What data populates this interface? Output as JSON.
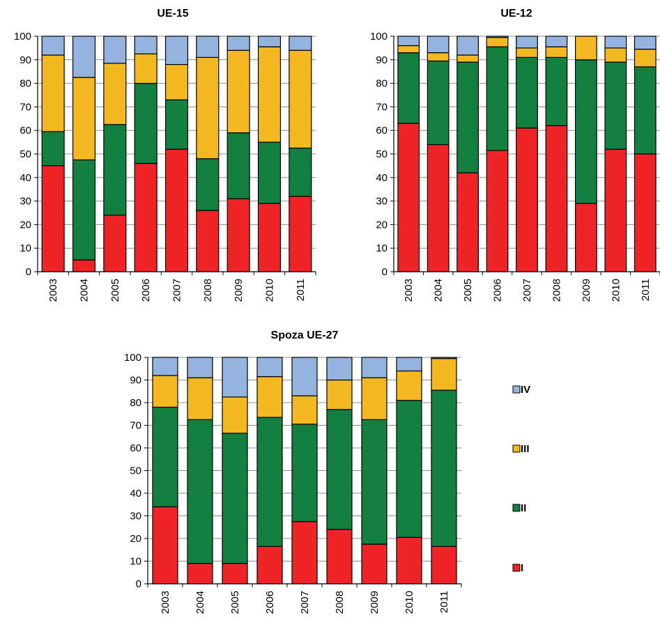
{
  "chart_data": [
    {
      "type": "bar",
      "stacked": true,
      "title": "UE-15",
      "categories": [
        "2003",
        "2004",
        "2005",
        "2006",
        "2007",
        "2008",
        "2009",
        "2010",
        "2011"
      ],
      "ylim": [
        0,
        100
      ],
      "yticks": [
        0,
        10,
        20,
        30,
        40,
        50,
        60,
        70,
        80,
        90,
        100
      ],
      "grid": true,
      "series": [
        {
          "name": "I",
          "values": [
            45,
            5,
            24,
            46,
            52,
            26,
            31,
            29,
            32
          ]
        },
        {
          "name": "II",
          "values": [
            14.5,
            42.5,
            38.5,
            34,
            21,
            22,
            28,
            26,
            20.5
          ]
        },
        {
          "name": "III",
          "values": [
            32.5,
            35,
            26,
            12.5,
            15,
            43,
            35,
            40.5,
            41.5
          ]
        },
        {
          "name": "IV",
          "values": [
            8,
            17.5,
            11.5,
            7.5,
            12,
            9,
            6,
            4.5,
            6
          ]
        }
      ]
    },
    {
      "type": "bar",
      "stacked": true,
      "title": "UE-12",
      "categories": [
        "2003",
        "2004",
        "2005",
        "2006",
        "2007",
        "2008",
        "2009",
        "2010",
        "2011"
      ],
      "ylim": [
        0,
        100
      ],
      "yticks": [
        0,
        10,
        20,
        30,
        40,
        50,
        60,
        70,
        80,
        90,
        100
      ],
      "grid": true,
      "series": [
        {
          "name": "I",
          "values": [
            63,
            54,
            42,
            51.5,
            61,
            62,
            29,
            52,
            50
          ]
        },
        {
          "name": "II",
          "values": [
            30,
            35.5,
            47,
            44,
            30,
            29,
            61,
            37,
            37
          ]
        },
        {
          "name": "III",
          "values": [
            3,
            3.5,
            3,
            4,
            4,
            4.5,
            10,
            6,
            7.5
          ]
        },
        {
          "name": "IV",
          "values": [
            4,
            7,
            8,
            0.5,
            5,
            4.5,
            0,
            5,
            5.5
          ]
        }
      ]
    },
    {
      "type": "bar",
      "stacked": true,
      "title": "Spoza UE-27",
      "categories": [
        "2003",
        "2004",
        "2005",
        "2006",
        "2007",
        "2008",
        "2009",
        "2010",
        "2011"
      ],
      "ylim": [
        0,
        100
      ],
      "yticks": [
        0,
        10,
        20,
        30,
        40,
        50,
        60,
        70,
        80,
        90,
        100
      ],
      "grid": true,
      "legend_position": "right",
      "series": [
        {
          "name": "I",
          "values": [
            34,
            9,
            9,
            16.5,
            27.5,
            24,
            17.5,
            20.5,
            16.5
          ]
        },
        {
          "name": "II",
          "values": [
            44,
            63.5,
            57.5,
            57,
            43,
            53,
            55,
            60.5,
            69
          ]
        },
        {
          "name": "III",
          "values": [
            14,
            18.5,
            16,
            18,
            12.5,
            13,
            18.5,
            13,
            14
          ]
        },
        {
          "name": "IV",
          "values": [
            8,
            9,
            17.5,
            8.5,
            17,
            10,
            9,
            6,
            0.5
          ]
        }
      ]
    }
  ],
  "colors": {
    "I": "#ee2427",
    "II": "#138040",
    "III": "#f4b921",
    "IV": "#94b3de"
  },
  "legend": {
    "items": [
      "IV",
      "III",
      "II",
      "I"
    ]
  }
}
